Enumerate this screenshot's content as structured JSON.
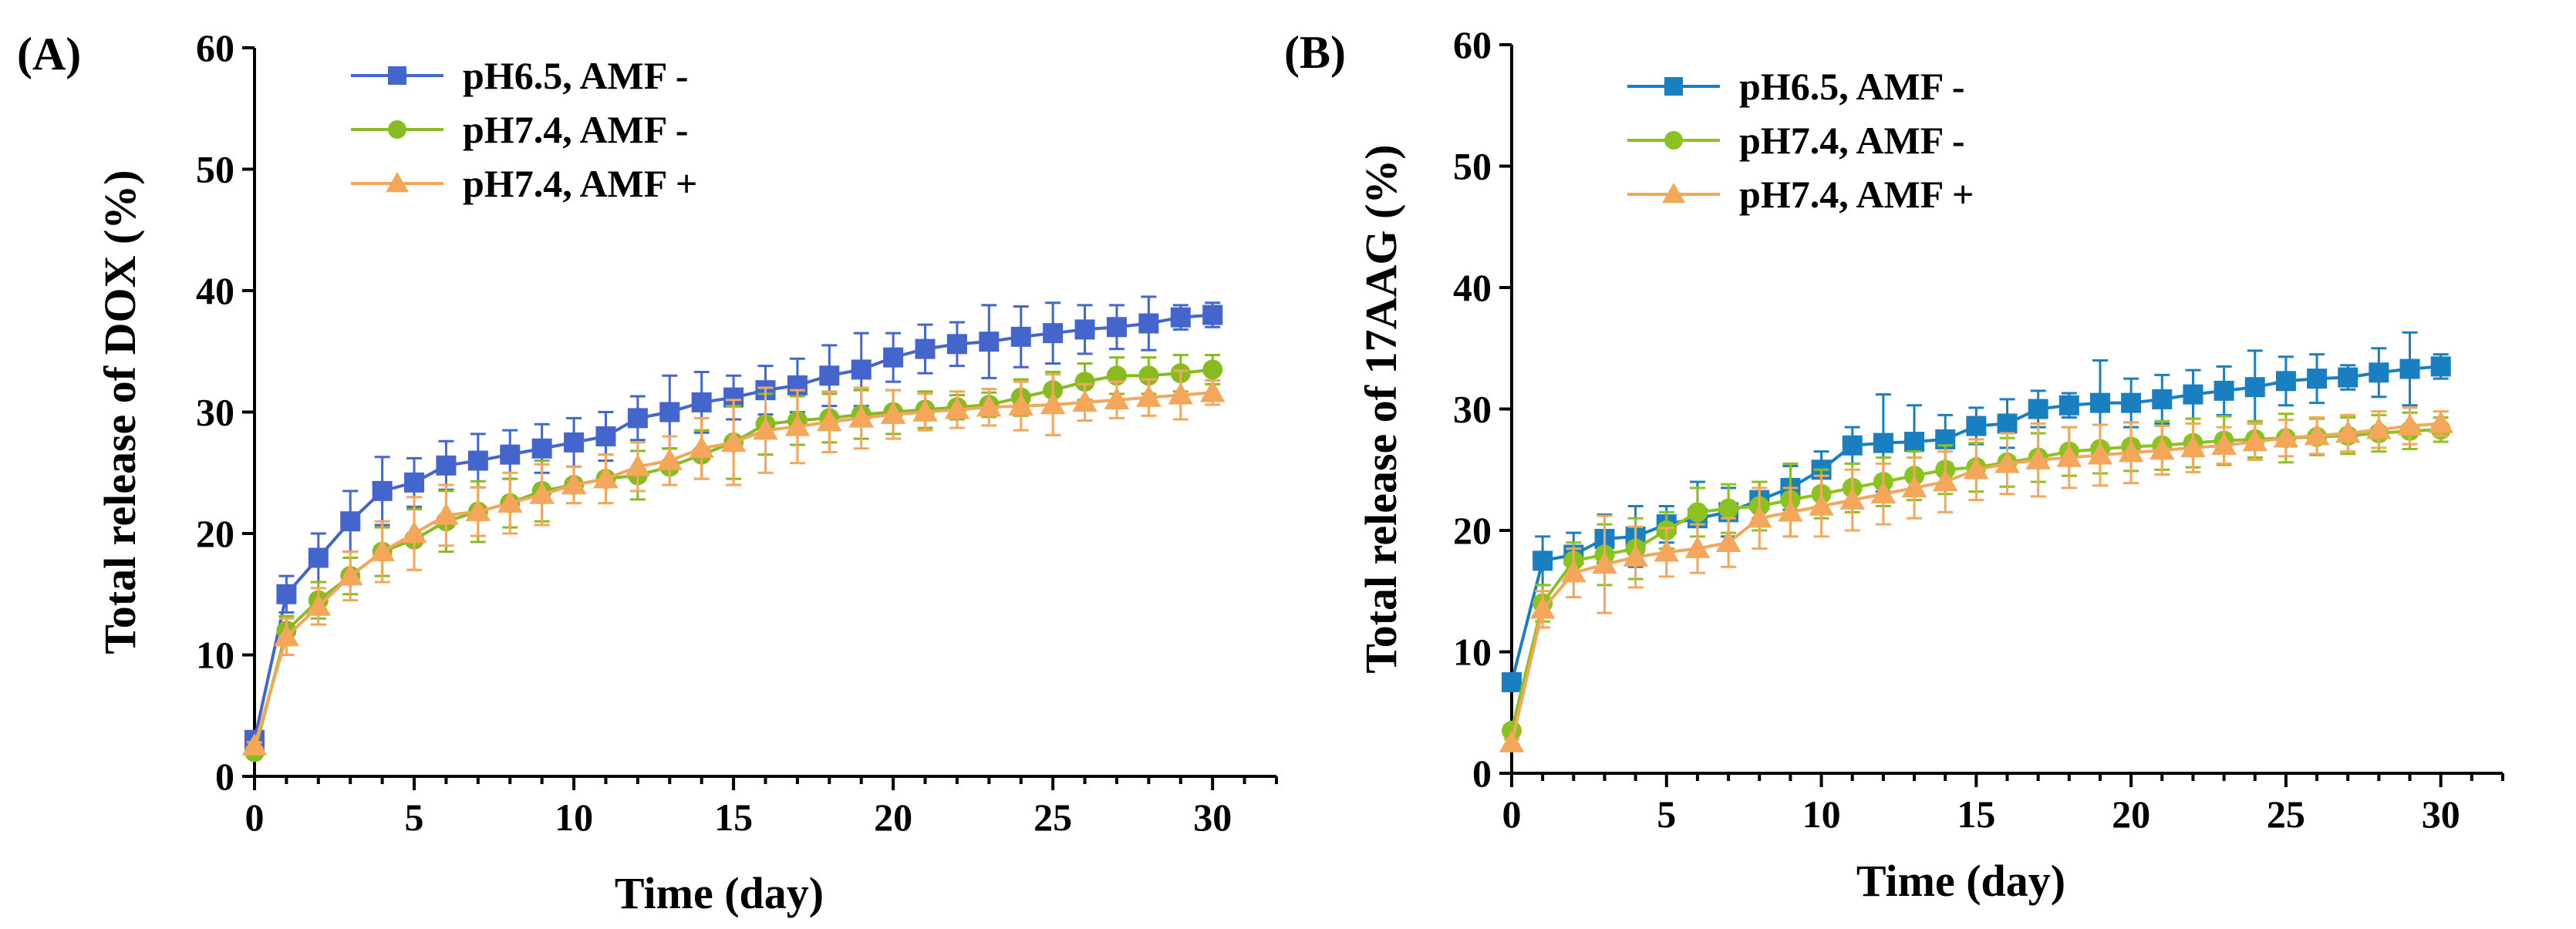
{
  "chart_data": [
    {
      "type": "line",
      "panel_label": "(A)",
      "title": "",
      "xlabel": "Time (day)",
      "ylabel": "Total release of DOX (%)",
      "xlim": [
        0,
        32
      ],
      "ylim": [
        0,
        60
      ],
      "xticks": [
        0,
        5,
        10,
        15,
        20,
        25,
        30
      ],
      "yticks": [
        0,
        10,
        20,
        30,
        40,
        50,
        60
      ],
      "xtick_labels": [
        "0",
        "5",
        "10",
        "15",
        "20",
        "25",
        "30"
      ],
      "ytick_labels": [
        "0",
        "10",
        "20",
        "30",
        "40",
        "50",
        "60"
      ],
      "legend_position": "top-left",
      "x": [
        0,
        1,
        2,
        3,
        4,
        5,
        6,
        7,
        8,
        9,
        10,
        11,
        12,
        13,
        14,
        15,
        16,
        17,
        18,
        19,
        20,
        21,
        22,
        23,
        24,
        25,
        26,
        27,
        28,
        29,
        30
      ],
      "series": [
        {
          "name": "pH6.5, AMF -",
          "color": "#4466cc",
          "marker": "square",
          "values": [
            3,
            15,
            18,
            21,
            23.5,
            24.2,
            25.6,
            26,
            26.5,
            27,
            27.5,
            28,
            29.5,
            30,
            30.8,
            31.2,
            31.8,
            32.2,
            33,
            33.5,
            34.5,
            35.2,
            35.6,
            35.8,
            36.2,
            36.5,
            36.8,
            37,
            37.3,
            37.8,
            38
          ],
          "errors": [
            0.5,
            1.5,
            2,
            2.5,
            2.8,
            2,
            2,
            2.2,
            2,
            2,
            2,
            2,
            1.8,
            3,
            2.5,
            1.8,
            2,
            2.2,
            2.5,
            3,
            2,
            2,
            1.8,
            3,
            2.5,
            2.5,
            2,
            1.8,
            2.2,
            1,
            1
          ]
        },
        {
          "name": "pH7.4, AMF -",
          "color": "#88bb22",
          "marker": "circle",
          "values": [
            2,
            12,
            14.5,
            16.5,
            18.5,
            19.5,
            21,
            21.8,
            22.5,
            23.5,
            24,
            24.5,
            24.8,
            25.5,
            26.5,
            27.5,
            29,
            29.3,
            29.5,
            29.8,
            30,
            30.2,
            30.4,
            30.6,
            31.2,
            31.8,
            32.5,
            33,
            33,
            33.2,
            33.5
          ],
          "errors": [
            0.3,
            1.2,
            1.5,
            1.5,
            2,
            2.5,
            2.5,
            2.5,
            2,
            2.5,
            1.5,
            2,
            2,
            1.5,
            2,
            3,
            2.5,
            2,
            2,
            2,
            1.8,
            1.5,
            1,
            1,
            1.5,
            1.5,
            1.5,
            1.5,
            1.5,
            1.5,
            1.2
          ]
        },
        {
          "name": "pH7.4, AMF +",
          "color": "#f4a65a",
          "marker": "triangle",
          "values": [
            2.5,
            11.5,
            14,
            16.5,
            18.5,
            20,
            21.5,
            21.8,
            22.5,
            23.2,
            24,
            24.5,
            25.5,
            26,
            27,
            27.5,
            28.5,
            28.8,
            29.2,
            29.5,
            29.8,
            30,
            30.2,
            30.4,
            30.5,
            30.6,
            30.8,
            31,
            31.2,
            31.4,
            31.6
          ],
          "errors": [
            0.3,
            1.5,
            1.5,
            2,
            2.5,
            3,
            2.5,
            2,
            2.5,
            2.5,
            1.5,
            2,
            2,
            2,
            2.5,
            3.5,
            3.5,
            3,
            2.5,
            2.5,
            2,
            1.5,
            1.5,
            1.5,
            2,
            2.5,
            1.5,
            1.5,
            1.5,
            2,
            1
          ]
        }
      ]
    },
    {
      "type": "line",
      "panel_label": "(B)",
      "title": "",
      "xlabel": "Time (day)",
      "ylabel": "Total release of 17AAG (%)",
      "xlim": [
        0,
        32
      ],
      "ylim": [
        0,
        60
      ],
      "xticks": [
        0,
        5,
        10,
        15,
        20,
        25,
        30
      ],
      "yticks": [
        0,
        10,
        20,
        30,
        40,
        50,
        60
      ],
      "xtick_labels": [
        "0",
        "5",
        "10",
        "15",
        "20",
        "25",
        "30"
      ],
      "ytick_labels": [
        "0",
        "10",
        "20",
        "30",
        "40",
        "50",
        "60"
      ],
      "legend_position": "top-left",
      "x": [
        0,
        1,
        2,
        3,
        4,
        5,
        6,
        7,
        8,
        9,
        10,
        11,
        12,
        13,
        14,
        15,
        16,
        17,
        18,
        19,
        20,
        21,
        22,
        23,
        24,
        25,
        26,
        27,
        28,
        29,
        30
      ],
      "series": [
        {
          "name": "pH6.5, AMF -",
          "color": "#1a7fc0",
          "marker": "square",
          "values": [
            7.5,
            17.5,
            18,
            19.3,
            19.5,
            20.5,
            21,
            21.5,
            22.5,
            23.5,
            25,
            27,
            27.2,
            27.3,
            27.5,
            28.6,
            28.8,
            30,
            30.3,
            30.5,
            30.5,
            30.8,
            31.2,
            31.5,
            31.8,
            32.3,
            32.5,
            32.6,
            33,
            33.3,
            33.5
          ],
          "errors": [
            0.5,
            2,
            1.8,
            2,
            2.5,
            1.5,
            3,
            2,
            1.5,
            1.8,
            1.5,
            1.5,
            4,
            3,
            2,
            1.5,
            2,
            1.5,
            1,
            3.5,
            2,
            2,
            2,
            2,
            3,
            2,
            2,
            1,
            2,
            3,
            1
          ]
        },
        {
          "name": "pH7.4, AMF -",
          "color": "#8cc21f",
          "marker": "circle",
          "values": [
            3.5,
            14,
            17.5,
            18,
            18.5,
            20,
            21.5,
            21.8,
            22,
            22.5,
            23,
            23.5,
            24,
            24.5,
            25,
            25.2,
            25.6,
            26,
            26.5,
            26.7,
            26.9,
            27,
            27.2,
            27.4,
            27.5,
            27.6,
            27.7,
            27.8,
            28,
            28.2,
            28.3
          ],
          "errors": [
            0.3,
            1.5,
            1.5,
            2.5,
            2.5,
            1.5,
            2,
            2,
            2,
            3,
            2,
            2,
            2,
            2,
            2,
            2,
            2,
            2,
            2,
            2,
            2,
            2,
            2,
            2,
            1.5,
            2,
            1.5,
            1.5,
            1.5,
            1.5,
            1
          ]
        },
        {
          "name": "pH7.4, AMF +",
          "color": "#f4a65a",
          "marker": "triangle",
          "values": [
            2.5,
            13.5,
            16.5,
            17.2,
            17.8,
            18.2,
            18.5,
            19,
            21,
            21.5,
            22,
            22.5,
            23,
            23.5,
            24,
            25,
            25.5,
            25.8,
            26,
            26.2,
            26.4,
            26.6,
            26.8,
            27,
            27.3,
            27.6,
            27.8,
            28,
            28.3,
            28.6,
            28.8
          ],
          "errors": [
            0.3,
            1.5,
            2,
            4,
            2.5,
            2,
            2,
            2,
            2.5,
            2,
            2.5,
            2.5,
            2.5,
            2.5,
            2.5,
            2.5,
            2.5,
            3,
            2.5,
            2.5,
            2.5,
            2,
            2,
            1.5,
            1.5,
            1.5,
            1.5,
            1.5,
            1.5,
            1.5,
            1
          ]
        }
      ]
    }
  ]
}
